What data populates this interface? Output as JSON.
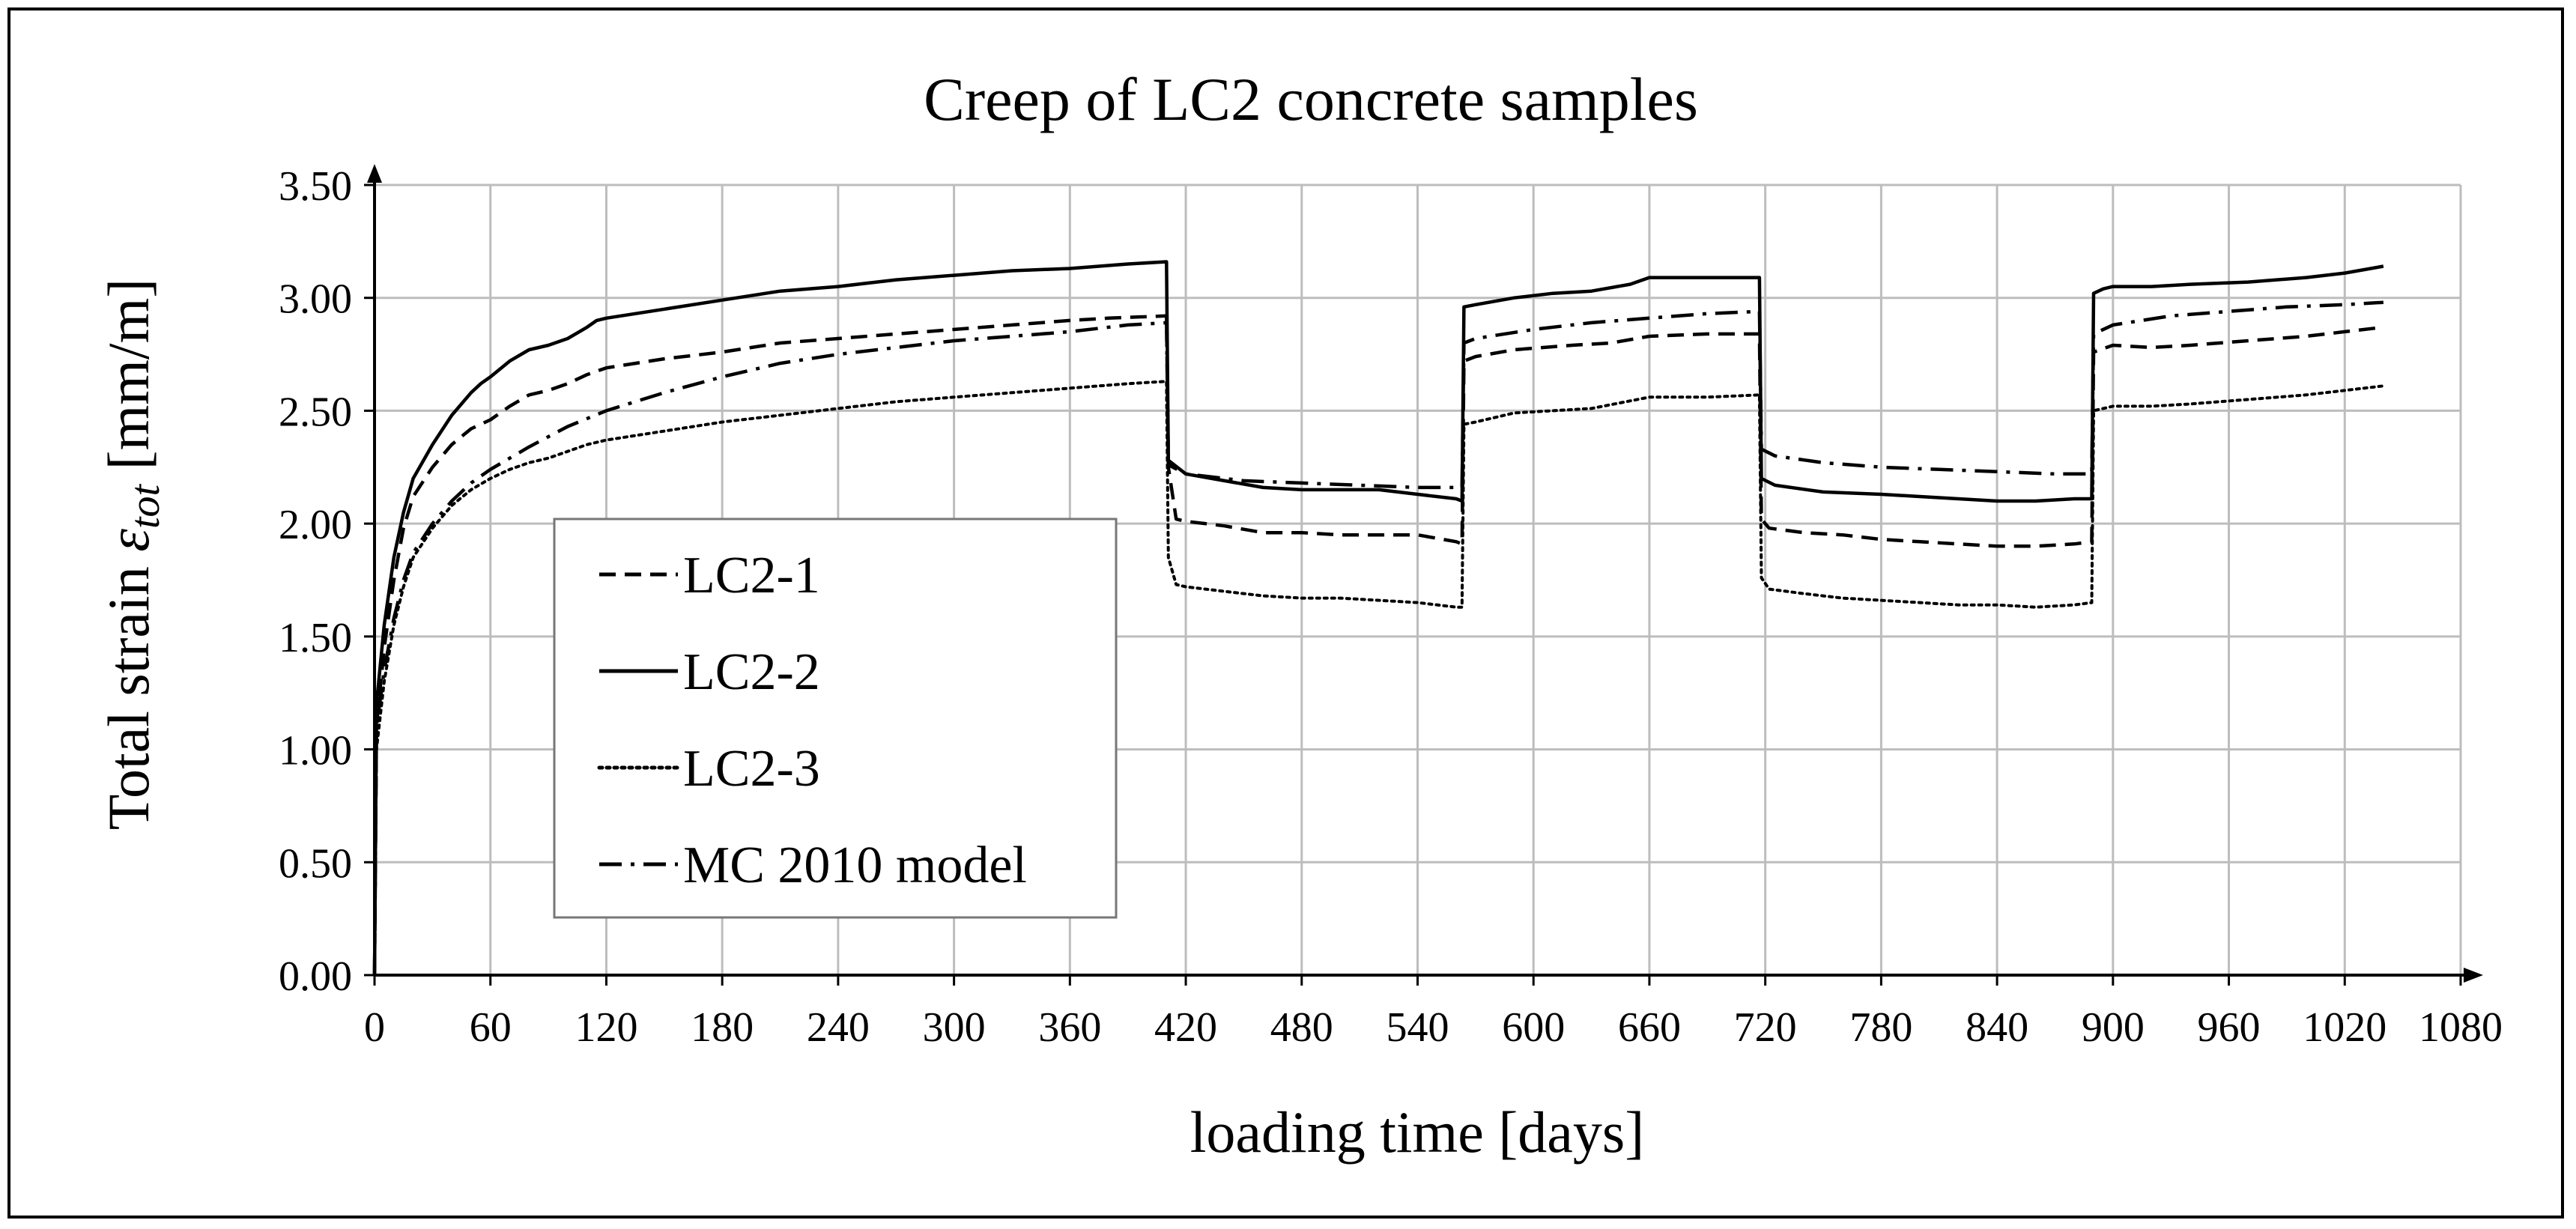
{
  "chart_data": {
    "type": "line",
    "title": "Creep of LC2 concrete samples",
    "xlabel": "loading time [days]",
    "ylabel_prefix": "Total strain ",
    "ylabel_symbol": "ε",
    "ylabel_subscript": "tot",
    "ylabel_suffix": "  [mm/m]",
    "xlim": [
      0,
      1080
    ],
    "ylim": [
      0,
      3.5
    ],
    "xticks": [
      "0",
      "60",
      "120",
      "180",
      "240",
      "300",
      "360",
      "420",
      "480",
      "540",
      "600",
      "660",
      "720",
      "780",
      "840",
      "900",
      "960",
      "1020",
      "1080"
    ],
    "yticks": [
      "0.00",
      "0.50",
      "1.00",
      "1.50",
      "2.00",
      "2.50",
      "3.00",
      "3.50"
    ],
    "grid": true,
    "legend_position": "center-left",
    "series": [
      {
        "name": "LC2-1",
        "dash": "dashed",
        "points": [
          [
            0,
            0
          ],
          [
            1,
            1.1
          ],
          [
            5,
            1.45
          ],
          [
            10,
            1.75
          ],
          [
            15,
            1.98
          ],
          [
            20,
            2.12
          ],
          [
            30,
            2.25
          ],
          [
            40,
            2.35
          ],
          [
            50,
            2.42
          ],
          [
            60,
            2.46
          ],
          [
            70,
            2.52
          ],
          [
            80,
            2.57
          ],
          [
            90,
            2.59
          ],
          [
            100,
            2.62
          ],
          [
            110,
            2.66
          ],
          [
            120,
            2.69
          ],
          [
            150,
            2.73
          ],
          [
            180,
            2.76
          ],
          [
            210,
            2.8
          ],
          [
            240,
            2.82
          ],
          [
            270,
            2.84
          ],
          [
            300,
            2.86
          ],
          [
            330,
            2.88
          ],
          [
            360,
            2.9
          ],
          [
            380,
            2.91
          ],
          [
            410,
            2.92
          ],
          [
            411,
            2.25
          ],
          [
            415,
            2.02
          ],
          [
            420,
            2.01
          ],
          [
            440,
            1.99
          ],
          [
            460,
            1.96
          ],
          [
            480,
            1.96
          ],
          [
            500,
            1.95
          ],
          [
            520,
            1.95
          ],
          [
            540,
            1.95
          ],
          [
            560,
            1.92
          ],
          [
            563,
            1.91
          ],
          [
            564,
            2.72
          ],
          [
            570,
            2.74
          ],
          [
            590,
            2.77
          ],
          [
            620,
            2.79
          ],
          [
            640,
            2.8
          ],
          [
            660,
            2.83
          ],
          [
            690,
            2.84
          ],
          [
            717,
            2.84
          ],
          [
            718,
            2.02
          ],
          [
            722,
            1.98
          ],
          [
            740,
            1.96
          ],
          [
            760,
            1.95
          ],
          [
            780,
            1.93
          ],
          [
            800,
            1.92
          ],
          [
            820,
            1.91
          ],
          [
            840,
            1.9
          ],
          [
            860,
            1.9
          ],
          [
            880,
            1.91
          ],
          [
            889,
            1.92
          ],
          [
            890,
            2.76
          ],
          [
            900,
            2.79
          ],
          [
            920,
            2.78
          ],
          [
            940,
            2.79
          ],
          [
            970,
            2.81
          ],
          [
            1000,
            2.83
          ],
          [
            1020,
            2.85
          ],
          [
            1040,
            2.87
          ]
        ]
      },
      {
        "name": "LC2-2",
        "dash": "solid",
        "points": [
          [
            0,
            0
          ],
          [
            1,
            1.2
          ],
          [
            5,
            1.55
          ],
          [
            10,
            1.85
          ],
          [
            15,
            2.05
          ],
          [
            20,
            2.2
          ],
          [
            30,
            2.35
          ],
          [
            40,
            2.48
          ],
          [
            50,
            2.58
          ],
          [
            55,
            2.62
          ],
          [
            60,
            2.65
          ],
          [
            70,
            2.72
          ],
          [
            80,
            2.77
          ],
          [
            90,
            2.79
          ],
          [
            100,
            2.82
          ],
          [
            110,
            2.87
          ],
          [
            115,
            2.9
          ],
          [
            120,
            2.91
          ],
          [
            150,
            2.95
          ],
          [
            180,
            2.99
          ],
          [
            210,
            3.03
          ],
          [
            240,
            3.05
          ],
          [
            270,
            3.08
          ],
          [
            300,
            3.1
          ],
          [
            330,
            3.12
          ],
          [
            360,
            3.13
          ],
          [
            390,
            3.15
          ],
          [
            410,
            3.16
          ],
          [
            411,
            2.28
          ],
          [
            420,
            2.22
          ],
          [
            440,
            2.19
          ],
          [
            460,
            2.16
          ],
          [
            480,
            2.15
          ],
          [
            500,
            2.15
          ],
          [
            520,
            2.15
          ],
          [
            540,
            2.13
          ],
          [
            560,
            2.11
          ],
          [
            563,
            2.1
          ],
          [
            564,
            2.96
          ],
          [
            570,
            2.97
          ],
          [
            590,
            3.0
          ],
          [
            610,
            3.02
          ],
          [
            630,
            3.03
          ],
          [
            650,
            3.06
          ],
          [
            660,
            3.09
          ],
          [
            690,
            3.09
          ],
          [
            717,
            3.09
          ],
          [
            718,
            2.2
          ],
          [
            725,
            2.17
          ],
          [
            750,
            2.14
          ],
          [
            780,
            2.13
          ],
          [
            800,
            2.12
          ],
          [
            820,
            2.11
          ],
          [
            840,
            2.1
          ],
          [
            860,
            2.1
          ],
          [
            880,
            2.11
          ],
          [
            889,
            2.11
          ],
          [
            890,
            3.02
          ],
          [
            895,
            3.04
          ],
          [
            900,
            3.05
          ],
          [
            920,
            3.05
          ],
          [
            940,
            3.06
          ],
          [
            970,
            3.07
          ],
          [
            1000,
            3.09
          ],
          [
            1020,
            3.11
          ],
          [
            1040,
            3.14
          ]
        ]
      },
      {
        "name": "LC2-3",
        "dash": "dotted",
        "points": [
          [
            0,
            0
          ],
          [
            1,
            1.0
          ],
          [
            5,
            1.3
          ],
          [
            10,
            1.55
          ],
          [
            15,
            1.72
          ],
          [
            20,
            1.85
          ],
          [
            30,
            1.98
          ],
          [
            40,
            2.08
          ],
          [
            50,
            2.15
          ],
          [
            60,
            2.2
          ],
          [
            70,
            2.24
          ],
          [
            80,
            2.27
          ],
          [
            90,
            2.29
          ],
          [
            100,
            2.32
          ],
          [
            110,
            2.35
          ],
          [
            120,
            2.37
          ],
          [
            150,
            2.41
          ],
          [
            180,
            2.45
          ],
          [
            210,
            2.48
          ],
          [
            240,
            2.51
          ],
          [
            270,
            2.54
          ],
          [
            300,
            2.56
          ],
          [
            330,
            2.58
          ],
          [
            360,
            2.6
          ],
          [
            390,
            2.62
          ],
          [
            410,
            2.63
          ],
          [
            411,
            1.85
          ],
          [
            415,
            1.73
          ],
          [
            420,
            1.72
          ],
          [
            440,
            1.7
          ],
          [
            460,
            1.68
          ],
          [
            480,
            1.67
          ],
          [
            500,
            1.67
          ],
          [
            520,
            1.66
          ],
          [
            540,
            1.65
          ],
          [
            560,
            1.63
          ],
          [
            563,
            1.63
          ],
          [
            564,
            2.44
          ],
          [
            570,
            2.45
          ],
          [
            590,
            2.49
          ],
          [
            610,
            2.5
          ],
          [
            630,
            2.51
          ],
          [
            660,
            2.56
          ],
          [
            690,
            2.56
          ],
          [
            717,
            2.57
          ],
          [
            718,
            1.76
          ],
          [
            722,
            1.71
          ],
          [
            740,
            1.69
          ],
          [
            760,
            1.67
          ],
          [
            780,
            1.66
          ],
          [
            800,
            1.65
          ],
          [
            820,
            1.64
          ],
          [
            840,
            1.64
          ],
          [
            860,
            1.63
          ],
          [
            880,
            1.64
          ],
          [
            889,
            1.65
          ],
          [
            890,
            2.5
          ],
          [
            895,
            2.51
          ],
          [
            900,
            2.52
          ],
          [
            920,
            2.52
          ],
          [
            940,
            2.53
          ],
          [
            970,
            2.55
          ],
          [
            1000,
            2.57
          ],
          [
            1020,
            2.59
          ],
          [
            1040,
            2.61
          ]
        ]
      },
      {
        "name": "MC 2010 model",
        "dash": "dashdot",
        "points": [
          [
            0,
            0
          ],
          [
            1,
            1.1
          ],
          [
            5,
            1.35
          ],
          [
            10,
            1.58
          ],
          [
            15,
            1.75
          ],
          [
            20,
            1.87
          ],
          [
            30,
            2.0
          ],
          [
            40,
            2.1
          ],
          [
            50,
            2.18
          ],
          [
            60,
            2.24
          ],
          [
            80,
            2.34
          ],
          [
            100,
            2.43
          ],
          [
            120,
            2.5
          ],
          [
            150,
            2.58
          ],
          [
            180,
            2.65
          ],
          [
            210,
            2.71
          ],
          [
            240,
            2.75
          ],
          [
            270,
            2.78
          ],
          [
            300,
            2.81
          ],
          [
            330,
            2.83
          ],
          [
            360,
            2.85
          ],
          [
            390,
            2.88
          ],
          [
            410,
            2.89
          ],
          [
            411,
            2.26
          ],
          [
            420,
            2.22
          ],
          [
            450,
            2.19
          ],
          [
            480,
            2.18
          ],
          [
            510,
            2.17
          ],
          [
            540,
            2.16
          ],
          [
            563,
            2.16
          ],
          [
            564,
            2.8
          ],
          [
            570,
            2.82
          ],
          [
            600,
            2.86
          ],
          [
            630,
            2.89
          ],
          [
            660,
            2.91
          ],
          [
            690,
            2.93
          ],
          [
            717,
            2.94
          ],
          [
            718,
            2.33
          ],
          [
            725,
            2.3
          ],
          [
            750,
            2.27
          ],
          [
            780,
            2.25
          ],
          [
            810,
            2.24
          ],
          [
            840,
            2.23
          ],
          [
            870,
            2.22
          ],
          [
            889,
            2.22
          ],
          [
            890,
            2.84
          ],
          [
            900,
            2.88
          ],
          [
            930,
            2.92
          ],
          [
            960,
            2.94
          ],
          [
            990,
            2.96
          ],
          [
            1020,
            2.97
          ],
          [
            1040,
            2.98
          ]
        ]
      }
    ]
  }
}
